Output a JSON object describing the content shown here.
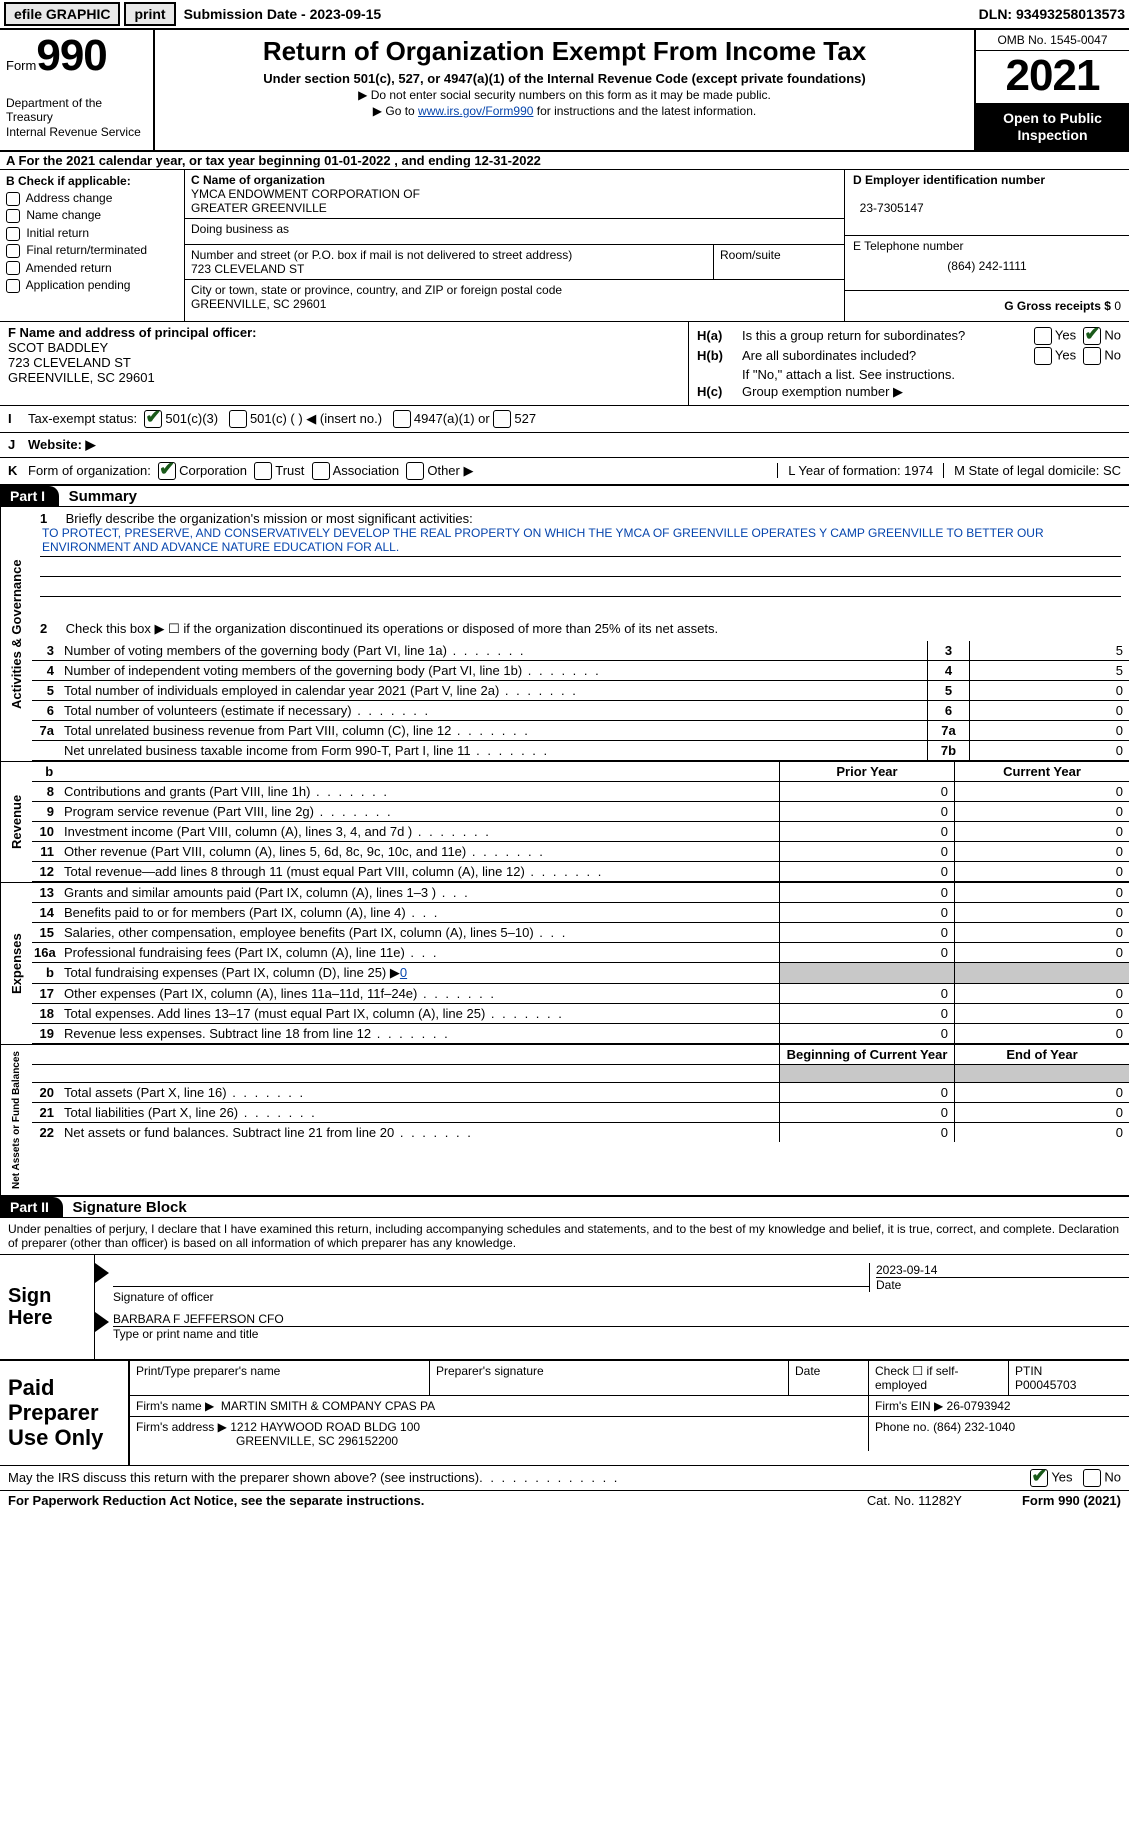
{
  "topbar": {
    "efile": "efile GRAPHIC",
    "print": "print",
    "sub_label": "Submission Date - 2023-09-15",
    "dln": "DLN: 93493258013573"
  },
  "header": {
    "form_word": "Form",
    "form_num": "990",
    "dept": "Department of the Treasury",
    "irs": "Internal Revenue Service",
    "title": "Return of Organization Exempt From Income Tax",
    "sub": "Under section 501(c), 527, or 4947(a)(1) of the Internal Revenue Code (except private foundations)",
    "note1": "▶ Do not enter social security numbers on this form as it may be made public.",
    "note2_pre": "▶ Go to ",
    "note2_link": "www.irs.gov/Form990",
    "note2_post": " for instructions and the latest information.",
    "omb": "OMB No. 1545-0047",
    "year": "2021",
    "open": "Open to Public Inspection"
  },
  "line_a": "A For the 2021 calendar year, or tax year beginning 01-01-2022   , and ending 12-31-2022",
  "col_b": {
    "hdr": "B Check if applicable:",
    "addr": "Address change",
    "name": "Name change",
    "init": "Initial return",
    "final": "Final return/terminated",
    "amend": "Amended return",
    "app": "Application pending"
  },
  "col_c": {
    "name_lbl": "C Name of organization",
    "name1": "YMCA ENDOWMENT CORPORATION OF",
    "name2": "GREATER GREENVILLE",
    "dba_lbl": "Doing business as",
    "street_lbl": "Number and street (or P.O. box if mail is not delivered to street address)",
    "street": "723 CLEVELAND ST",
    "room_lbl": "Room/suite",
    "city_lbl": "City or town, state or province, country, and ZIP or foreign postal code",
    "city": "GREENVILLE, SC  29601"
  },
  "col_d": {
    "ein_lbl": "D Employer identification number",
    "ein": "23-7305147",
    "tel_lbl": "E Telephone number",
    "tel": "(864) 242-1111",
    "gross_lbl": "G Gross receipts $",
    "gross": "0"
  },
  "section_f": {
    "f_lbl": "F Name and address of principal officer:",
    "name": "SCOT BADDLEY",
    "addr1": "723 CLEVELAND ST",
    "addr2": "GREENVILLE, SC  29601",
    "ha_lbl": "H(a)",
    "ha_text": "Is this a group return for subordinates?",
    "hb_lbl": "H(b)",
    "hb_text": "Are all subordinates included?",
    "hb_note": "If \"No,\" attach a list. See instructions.",
    "hc_lbl": "H(c)",
    "hc_text": "Group exemption number ▶",
    "yes": "Yes",
    "no": "No"
  },
  "tax_status": {
    "i_lbl": "I",
    "label": "Tax-exempt status:",
    "c3": "501(c)(3)",
    "c": "501(c) (  ) ◀ (insert no.)",
    "a1": "4947(a)(1) or",
    "s527": "527"
  },
  "website": {
    "j_lbl": "J",
    "label": "Website: ▶"
  },
  "line_k": {
    "k_lbl": "K",
    "label": "Form of organization:",
    "corp": "Corporation",
    "trust": "Trust",
    "assoc": "Association",
    "other": "Other ▶",
    "l_label": "L Year of formation: 1974",
    "m_label": "M State of legal domicile: SC"
  },
  "part1": {
    "part": "Part I",
    "title": "Summary",
    "activities": "Activities & Governance",
    "revenue": "Revenue",
    "expenses": "Expenses",
    "netassets": "Net Assets or Fund Balances",
    "l1_num": "1",
    "l1": "Briefly describe the organization's mission or most significant activities:",
    "mission": "TO PROTECT, PRESERVE, AND CONSERVATIVELY DEVELOP THE REAL PROPERTY ON WHICH THE YMCA OF GREENVILLE OPERATES Y CAMP GREENVILLE TO BETTER OUR ENVIRONMENT AND ADVANCE NATURE EDUCATION FOR ALL.",
    "l2_num": "2",
    "l2": "Check this box ▶ ☐ if the organization discontinued its operations or disposed of more than 25% of its net assets.",
    "rows_num": [
      {
        "n": "3",
        "d": "Number of voting members of the governing body (Part VI, line 1a)",
        "b": "3",
        "v": "5"
      },
      {
        "n": "4",
        "d": "Number of independent voting members of the governing body (Part VI, line 1b)",
        "b": "4",
        "v": "5"
      },
      {
        "n": "5",
        "d": "Total number of individuals employed in calendar year 2021 (Part V, line 2a)",
        "b": "5",
        "v": "0"
      },
      {
        "n": "6",
        "d": "Total number of volunteers (estimate if necessary)",
        "b": "6",
        "v": "0"
      },
      {
        "n": "7a",
        "d": "Total unrelated business revenue from Part VIII, column (C), line 12",
        "b": "7a",
        "v": "0"
      },
      {
        "n": "",
        "d": "Net unrelated business taxable income from Form 990-T, Part I, line 11",
        "b": "7b",
        "v": "0"
      }
    ],
    "prior_hdr": "Prior Year",
    "current_hdr": "Current Year",
    "rev_rows": [
      {
        "n": "8",
        "d": "Contributions and grants (Part VIII, line 1h)",
        "p": "0",
        "c": "0"
      },
      {
        "n": "9",
        "d": "Program service revenue (Part VIII, line 2g)",
        "p": "0",
        "c": "0"
      },
      {
        "n": "10",
        "d": "Investment income (Part VIII, column (A), lines 3, 4, and 7d )",
        "p": "0",
        "c": "0"
      },
      {
        "n": "11",
        "d": "Other revenue (Part VIII, column (A), lines 5, 6d, 8c, 9c, 10c, and 11e)",
        "p": "0",
        "c": "0"
      },
      {
        "n": "12",
        "d": "Total revenue—add lines 8 through 11 (must equal Part VIII, column (A), line 12)",
        "p": "0",
        "c": "0"
      }
    ],
    "exp_rows": [
      {
        "n": "13",
        "d": "Grants and similar amounts paid (Part IX, column (A), lines 1–3 )",
        "p": "0",
        "c": "0"
      },
      {
        "n": "14",
        "d": "Benefits paid to or for members (Part IX, column (A), line 4)",
        "p": "0",
        "c": "0"
      },
      {
        "n": "15",
        "d": "Salaries, other compensation, employee benefits (Part IX, column (A), lines 5–10)",
        "p": "0",
        "c": "0"
      },
      {
        "n": "16a",
        "d": "Professional fundraising fees (Part IX, column (A), line 11e)",
        "p": "0",
        "c": "0"
      }
    ],
    "l16b_n": "b",
    "l16b": "Total fundraising expenses (Part IX, column (D), line 25) ▶",
    "l16b_val": "0",
    "exp_rows2": [
      {
        "n": "17",
        "d": "Other expenses (Part IX, column (A), lines 11a–11d, 11f–24e)",
        "p": "0",
        "c": "0"
      },
      {
        "n": "18",
        "d": "Total expenses. Add lines 13–17 (must equal Part IX, column (A), line 25)",
        "p": "0",
        "c": "0"
      },
      {
        "n": "19",
        "d": "Revenue less expenses. Subtract line 18 from line 12",
        "p": "0",
        "c": "0"
      }
    ],
    "begin_hdr": "Beginning of Current Year",
    "end_hdr": "End of Year",
    "net_rows": [
      {
        "n": "20",
        "d": "Total assets (Part X, line 16)",
        "p": "0",
        "c": "0"
      },
      {
        "n": "21",
        "d": "Total liabilities (Part X, line 26)",
        "p": "0",
        "c": "0"
      },
      {
        "n": "22",
        "d": "Net assets or fund balances. Subtract line 21 from line 20",
        "p": "0",
        "c": "0"
      }
    ]
  },
  "part2": {
    "part": "Part II",
    "title": "Signature Block",
    "notice": "Under penalties of perjury, I declare that I have examined this return, including accompanying schedules and statements, and to the best of my knowledge and belief, it is true, correct, and complete. Declaration of preparer (other than officer) is based on all information of which preparer has any knowledge.",
    "sign_here": "Sign Here",
    "sig_of_officer": "Signature of officer",
    "sig_date": "2023-09-14",
    "date_lbl": "Date",
    "officer_name": "BARBARA F JEFFERSON  CFO",
    "type_name_lbl": "Type or print name and title",
    "paid_prep": "Paid Preparer Use Only",
    "prep_name_lbl": "Print/Type preparer's name",
    "prep_sig_lbl": "Preparer's signature",
    "check_if": "Check ☐ if self-employed",
    "ptin_lbl": "PTIN",
    "ptin": "P00045703",
    "firm_name_lbl": "Firm's name   ▶",
    "firm_name": "MARTIN SMITH & COMPANY CPAS PA",
    "firm_ein_lbl": "Firm's EIN ▶",
    "firm_ein": "26-0793942",
    "firm_addr_lbl": "Firm's address ▶",
    "firm_addr1": "1212 HAYWOOD ROAD BLDG 100",
    "firm_addr2": "GREENVILLE, SC  296152200",
    "phone_lbl": "Phone no.",
    "phone": "(864) 232-1040"
  },
  "discuss": {
    "text": "May the IRS discuss this return with the preparer shown above? (see instructions)",
    "yes": "Yes",
    "no": "No"
  },
  "footer": {
    "pra": "For Paperwork Reduction Act Notice, see the separate instructions.",
    "cat": "Cat. No. 11282Y",
    "form": "Form 990 (2021)"
  }
}
